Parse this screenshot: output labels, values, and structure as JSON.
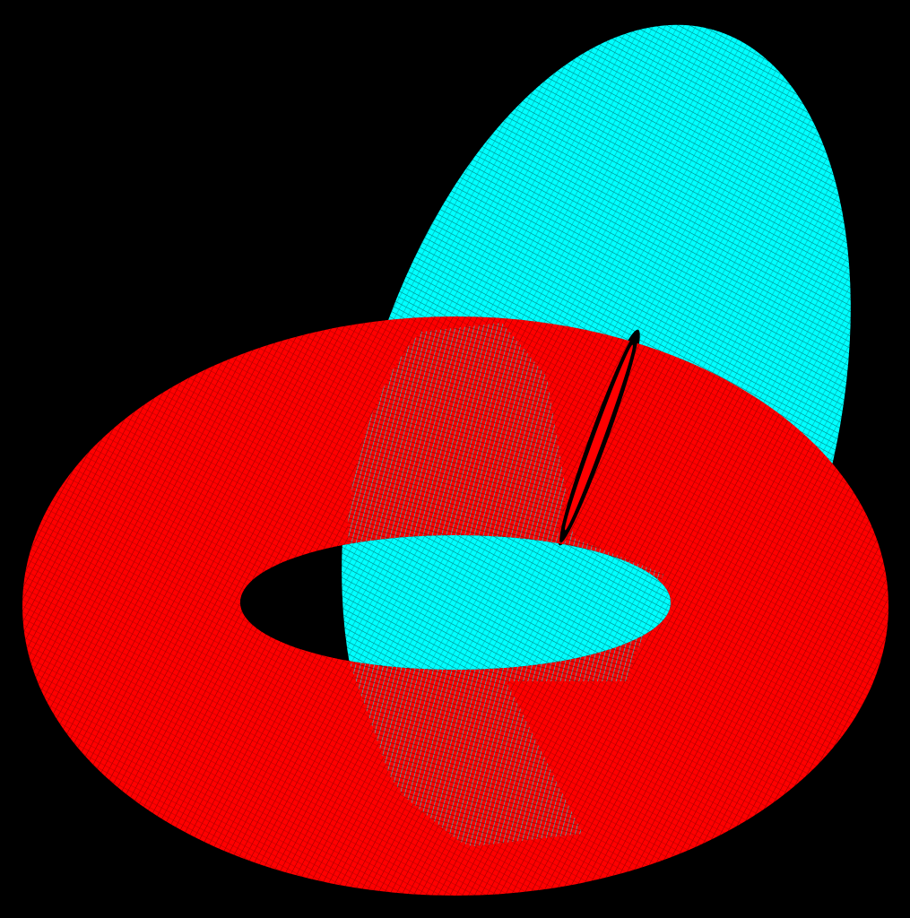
{
  "scene": {
    "background_color": "#000000",
    "objects": [
      {
        "name": "red-torus",
        "shape": "torus",
        "render_style": "wireframe-mesh",
        "color": "#ff0000"
      },
      {
        "name": "cyan-torus",
        "shape": "torus",
        "render_style": "wireframe-mesh",
        "color": "#00ffff"
      }
    ],
    "arrangement": "interlocking"
  }
}
